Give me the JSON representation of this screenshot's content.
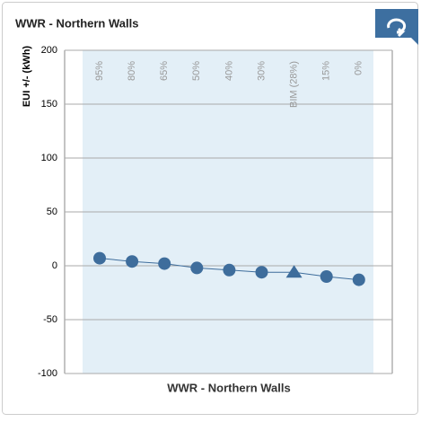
{
  "chart_data": {
    "type": "line",
    "title": "WWR - Northern Walls",
    "x_label": "WWR - Northern Walls",
    "y_label": "EUI +/- (kWh)",
    "categories": [
      "95%",
      "80%",
      "65%",
      "50%",
      "40%",
      "30%",
      "BIM (28%)",
      "15%",
      "0%"
    ],
    "values": [
      7,
      4,
      2,
      -2,
      -4,
      -6,
      -6,
      -10,
      -13
    ],
    "markers": [
      "circle",
      "circle",
      "circle",
      "circle",
      "circle",
      "circle",
      "triangle",
      "circle",
      "circle"
    ],
    "color": "#3e6d9c",
    "ylim": [
      -100,
      200
    ],
    "yticks": [
      -100,
      -50,
      0,
      50,
      100,
      150,
      200
    ],
    "grid": true
  }
}
